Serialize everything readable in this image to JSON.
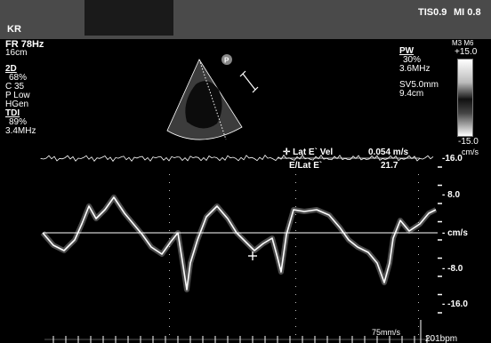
{
  "header": {
    "patient_id": "KR",
    "tis": "TIS0.9",
    "mi": "MI 0.8"
  },
  "left_params": {
    "frame_rate": "FR 78Hz",
    "depth": "16cm",
    "mode_2d": {
      "label": "2D",
      "gain": "68%",
      "compress": "C 35",
      "power": "P Low",
      "mode": "HGen"
    },
    "tdi": {
      "label": "TDI",
      "gain": "89%",
      "freq": "3.4MHz"
    }
  },
  "right_params": {
    "pw": {
      "label": "PW",
      "gain": "30%",
      "freq": "3.6MHz"
    },
    "sample_volume": "SV5.0mm",
    "depth": "9.4cm"
  },
  "probe_marker": "P",
  "color_bar": {
    "top_label": "M3 M6",
    "max": "+15.0",
    "min": "-15.0",
    "unit": "cm/s"
  },
  "measurements": {
    "row1": {
      "label": "✛ Lat E` Vel",
      "value": "0.054 m/s"
    },
    "row2": {
      "label": "E/Lat E`",
      "value": "21.7"
    }
  },
  "scale": {
    "top": "-16.0",
    "t8": "- 8.0",
    "baseline": "- cm/s",
    "b8": "- -8.0",
    "bottom": "- -16.0"
  },
  "footer": {
    "sweep_speed": "75mm/s",
    "heart_rate": "201bpm"
  },
  "colors": {
    "background": "#000000",
    "header": "#4a4a4a",
    "trace": "#ffffff"
  }
}
